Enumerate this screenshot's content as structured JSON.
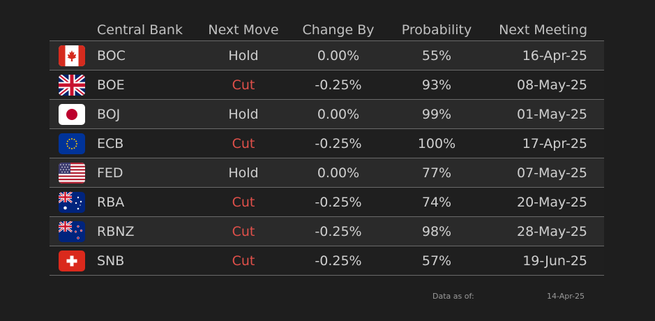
{
  "header": {
    "central_bank": "Central Bank",
    "next_move": "Next Move",
    "change_by": "Change By",
    "probability": "Probability",
    "next_meeting": "Next Meeting"
  },
  "rows": [
    {
      "flag": "canada-flag-icon",
      "bank": "BOC",
      "move": "Hold",
      "change": "0.00%",
      "prob": "55%",
      "date": "16-Apr-25"
    },
    {
      "flag": "uk-flag-icon",
      "bank": "BOE",
      "move": "Cut",
      "change": "-0.25%",
      "prob": "93%",
      "date": "08-May-25"
    },
    {
      "flag": "japan-flag-icon",
      "bank": "BOJ",
      "move": "Hold",
      "change": "0.00%",
      "prob": "99%",
      "date": "01-May-25"
    },
    {
      "flag": "eu-flag-icon",
      "bank": "ECB",
      "move": "Cut",
      "change": "-0.25%",
      "prob": "100%",
      "date": "17-Apr-25"
    },
    {
      "flag": "usa-flag-icon",
      "bank": "FED",
      "move": "Hold",
      "change": "0.00%",
      "prob": "77%",
      "date": "07-May-25"
    },
    {
      "flag": "australia-flag-icon",
      "bank": "RBA",
      "move": "Cut",
      "change": "-0.25%",
      "prob": "74%",
      "date": "20-May-25"
    },
    {
      "flag": "new-zealand-flag-icon",
      "bank": "RBNZ",
      "move": "Cut",
      "change": "-0.25%",
      "prob": "98%",
      "date": "28-May-25"
    },
    {
      "flag": "switzerland-flag-icon",
      "bank": "SNB",
      "move": "Cut",
      "change": "-0.25%",
      "prob": "57%",
      "date": "19-Jun-25"
    }
  ],
  "footer": {
    "label": "Data as of:",
    "date": "14-Apr-25"
  },
  "colors": {
    "cut": "#e0504a",
    "hold": "#cfcfcf"
  }
}
